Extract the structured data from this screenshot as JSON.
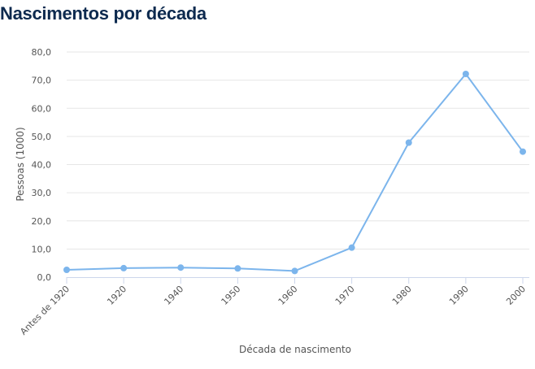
{
  "title": "Nascimentos por década",
  "chart_data": {
    "type": "line",
    "title": "Nascimentos por década",
    "xlabel": "Década de nascimento",
    "ylabel": "Pessoas (1000)",
    "categories": [
      "Antes de 1920",
      "1920",
      "1940",
      "1950",
      "1960",
      "1970",
      "1980",
      "1990",
      "2000"
    ],
    "series": [
      {
        "values": [
          2.6,
          3.2,
          3.4,
          3.1,
          2.2,
          10.5,
          47.8,
          72.2,
          44.6
        ]
      }
    ],
    "ylim": [
      0,
      80
    ],
    "yticks": [
      "0,0",
      "10,0",
      "20,0",
      "30,0",
      "40,0",
      "50,0",
      "60,0",
      "70,0",
      "80,0"
    ],
    "grid": true,
    "colors": {
      "line": "#7cb5ec",
      "grid": "#e6e6e6",
      "title": "#0d2a4f"
    }
  }
}
